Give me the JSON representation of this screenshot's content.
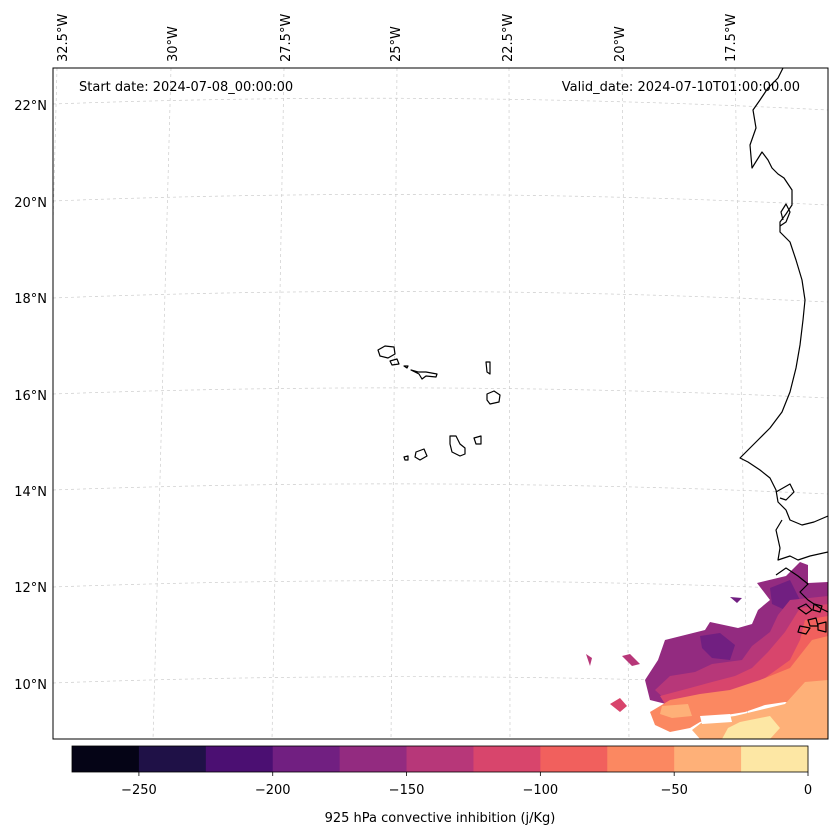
{
  "map": {
    "start_date": "Start date: 2024-07-08_00:00:00",
    "valid_date": "Valid_date: 2024-07-10T01:00:00.00",
    "lon_labels": [
      "32.5°W",
      "30°W",
      "27.5°W",
      "25°W",
      "22.5°W",
      "20°W",
      "17.5°W"
    ],
    "lat_labels": [
      "22°N",
      "20°N",
      "18°N",
      "16°N",
      "14°N",
      "12°N",
      "10°N"
    ]
  },
  "colorbar": {
    "label": "925 hPa convective inhibition (j/Kg)",
    "ticks": [
      "−250",
      "−200",
      "−150",
      "−100",
      "−50",
      "0"
    ],
    "tick_values": [
      -250,
      -200,
      -150,
      -100,
      -50,
      0
    ],
    "min": -275,
    "max": 0,
    "colors": [
      "#050416",
      "#1f1147",
      "#4b0f72",
      "#711f81",
      "#932b80",
      "#b73779",
      "#d8456c",
      "#f1605d",
      "#fb8861",
      "#feb078",
      "#fde7a4"
    ]
  }
}
